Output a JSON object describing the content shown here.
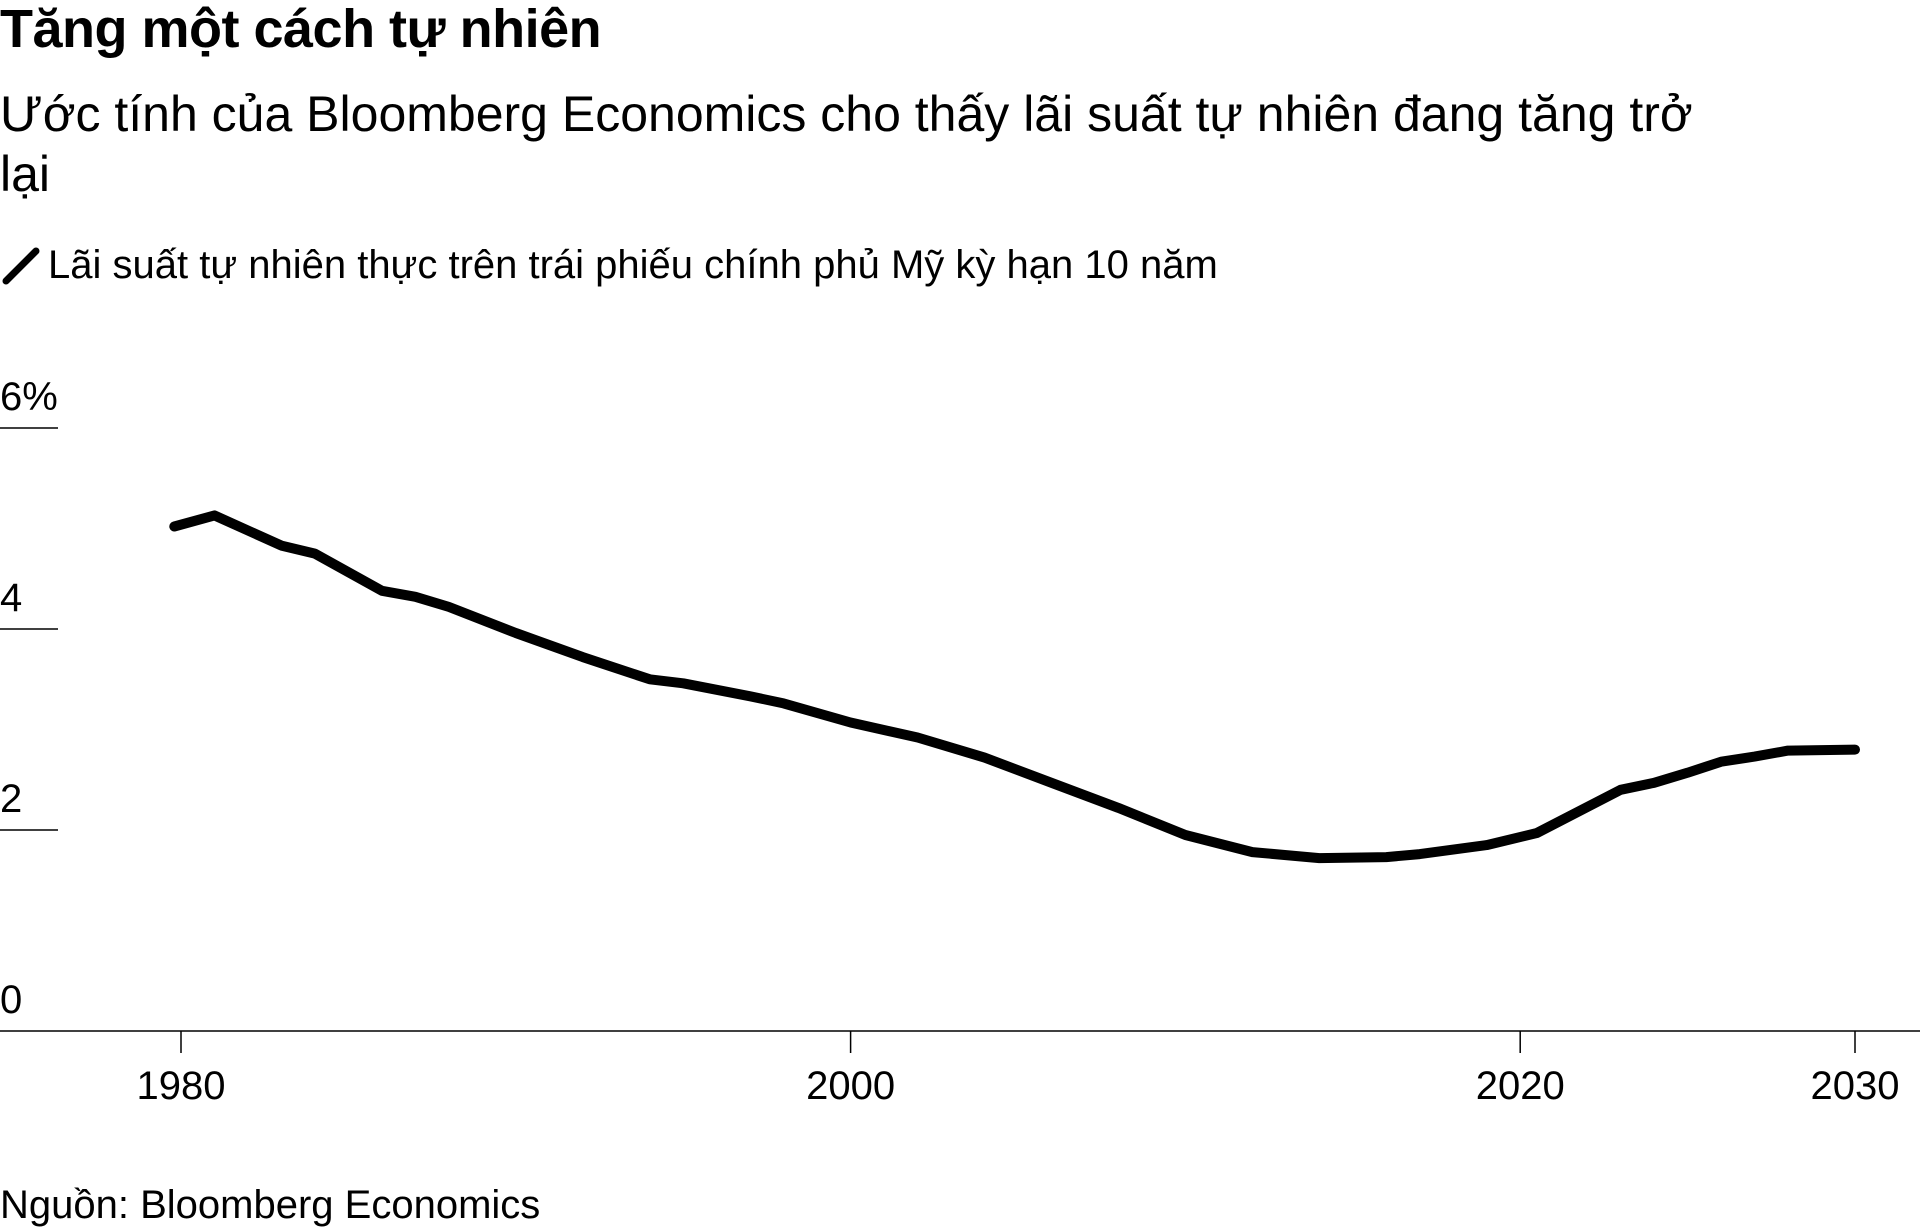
{
  "title": "Tăng một cách tự nhiên",
  "subtitle": "Ước tính của Bloomberg Economics cho thấy lãi suất tự nhiên đang tăng trở lại",
  "source": "Nguồn: Bloomberg Economics",
  "colors": {
    "series": "#000000",
    "gridline": "#000000",
    "background": "#ffffff"
  },
  "chart_data": {
    "type": "line",
    "title": "Tăng một cách tự nhiên",
    "subtitle": "Ước tính của Bloomberg Economics cho thấy lãi suất tự nhiên đang tăng trở lại",
    "xlabel": "",
    "ylabel": "",
    "xlim": [
      1980,
      2030
    ],
    "ylim": [
      0,
      6
    ],
    "grid": true,
    "legend_position": "top-left",
    "y_ticks": [
      {
        "value": 0,
        "label": "0"
      },
      {
        "value": 2,
        "label": "2"
      },
      {
        "value": 4,
        "label": "4"
      },
      {
        "value": 6,
        "label": "6%"
      }
    ],
    "x_ticks": [
      {
        "value": 1980,
        "label": "1980"
      },
      {
        "value": 2000,
        "label": "2000"
      },
      {
        "value": 2020,
        "label": "2020"
      },
      {
        "value": 2030,
        "label": "2030"
      }
    ],
    "series": [
      {
        "name": "Lãi suất tự nhiên thực trên trái phiếu chính phủ Mỹ kỳ hạn 10 năm",
        "x": [
          1979.8,
          1981,
          1983,
          1984,
          1986,
          1987,
          1988,
          1990,
          1992,
          1994,
          1995,
          1997,
          1998,
          2000,
          2002,
          2004,
          2006,
          2008,
          2010,
          2012,
          2014,
          2016,
          2017,
          2019,
          2020.5,
          2023,
          2024,
          2025,
          2026,
          2027,
          2028,
          2030
        ],
        "y": [
          5.02,
          5.13,
          4.83,
          4.75,
          4.38,
          4.32,
          4.22,
          3.96,
          3.72,
          3.5,
          3.46,
          3.33,
          3.26,
          3.07,
          2.92,
          2.72,
          2.47,
          2.22,
          1.95,
          1.78,
          1.72,
          1.73,
          1.76,
          1.85,
          1.97,
          2.4,
          2.47,
          2.57,
          2.68,
          2.73,
          2.79,
          2.8
        ]
      }
    ]
  }
}
